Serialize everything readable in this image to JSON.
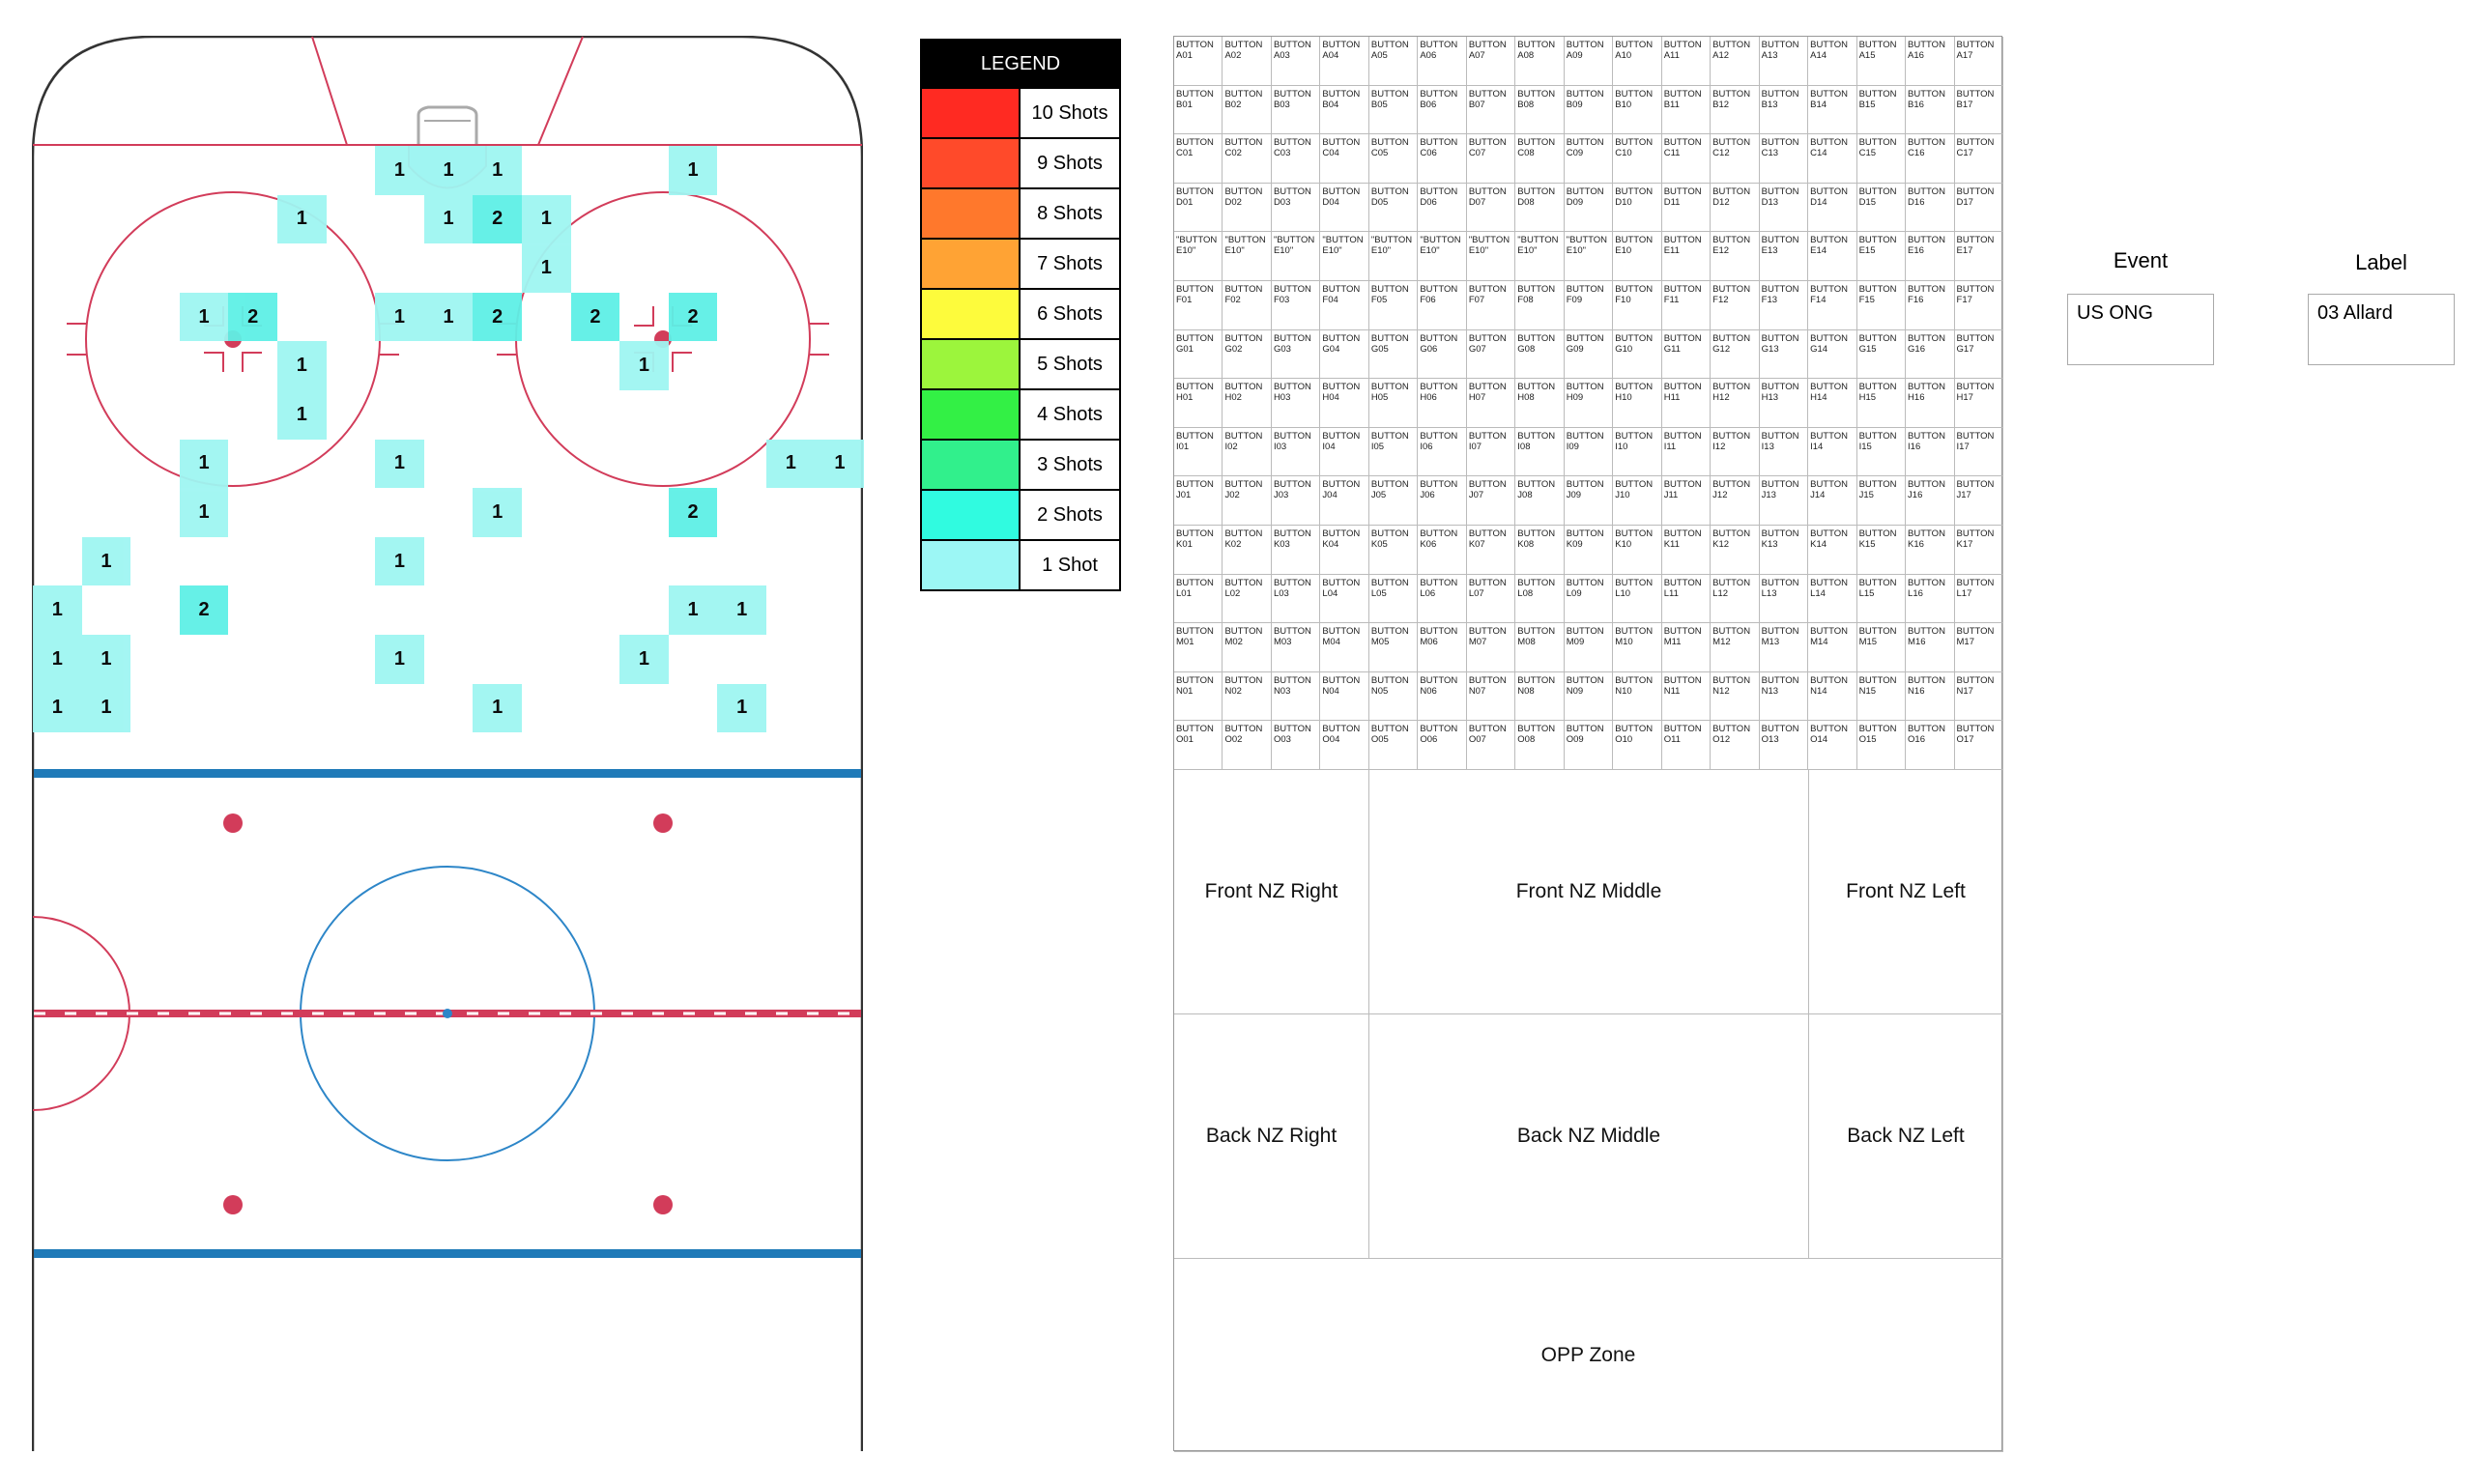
{
  "colors": {
    "rink_red": "#d23c5a",
    "blue_line": "#1f7ab8",
    "center_circle": "#2d86c8",
    "heat_1": "#9ff6f2",
    "heat_2": "#5ef0e6"
  },
  "legend": {
    "title": "LEGEND",
    "items": [
      {
        "label": "10 Shots",
        "color": "#ff2a22"
      },
      {
        "label": "9 Shots",
        "color": "#ff4a2a"
      },
      {
        "label": "8 Shots",
        "color": "#ff782c"
      },
      {
        "label": "7 Shots",
        "color": "#ffa334"
      },
      {
        "label": "6 Shots",
        "color": "#fdfb3c"
      },
      {
        "label": "5 Shots",
        "color": "#9cf53c"
      },
      {
        "label": "4 Shots",
        "color": "#33f045"
      },
      {
        "label": "3 Shots",
        "color": "#31f08c"
      },
      {
        "label": "2 Shots",
        "color": "#30fbe0"
      },
      {
        "label": "1 Shot",
        "color": "#9cf7f5"
      }
    ]
  },
  "heatmap": {
    "cells": [
      {
        "row": 0,
        "col": 7,
        "count": "1"
      },
      {
        "row": 0,
        "col": 8,
        "count": "1"
      },
      {
        "row": 0,
        "col": 9,
        "count": "1"
      },
      {
        "row": 0,
        "col": 13,
        "count": "1"
      },
      {
        "row": 1,
        "col": 5,
        "count": "1"
      },
      {
        "row": 1,
        "col": 8,
        "count": "1"
      },
      {
        "row": 1,
        "col": 9,
        "count": "2"
      },
      {
        "row": 1,
        "col": 10,
        "count": "1"
      },
      {
        "row": 2,
        "col": 10,
        "count": "1"
      },
      {
        "row": 3,
        "col": 3,
        "count": "1"
      },
      {
        "row": 3,
        "col": 4,
        "count": "2"
      },
      {
        "row": 3,
        "col": 7,
        "count": "1"
      },
      {
        "row": 3,
        "col": 8,
        "count": "1"
      },
      {
        "row": 3,
        "col": 9,
        "count": "2"
      },
      {
        "row": 3,
        "col": 11,
        "count": "2"
      },
      {
        "row": 3,
        "col": 13,
        "count": "2"
      },
      {
        "row": 4,
        "col": 5,
        "count": "1"
      },
      {
        "row": 4,
        "col": 12,
        "count": "1"
      },
      {
        "row": 5,
        "col": 5,
        "count": "1"
      },
      {
        "row": 6,
        "col": 3,
        "count": "1"
      },
      {
        "row": 6,
        "col": 7,
        "count": "1"
      },
      {
        "row": 6,
        "col": 15,
        "count": "1"
      },
      {
        "row": 6,
        "col": 16,
        "count": "1"
      },
      {
        "row": 7,
        "col": 3,
        "count": "1"
      },
      {
        "row": 7,
        "col": 9,
        "count": "1"
      },
      {
        "row": 7,
        "col": 13,
        "count": "2"
      },
      {
        "row": 8,
        "col": 1,
        "count": "1"
      },
      {
        "row": 8,
        "col": 7,
        "count": "1"
      },
      {
        "row": 9,
        "col": 0,
        "count": "1"
      },
      {
        "row": 9,
        "col": 3,
        "count": "2"
      },
      {
        "row": 9,
        "col": 13,
        "count": "1"
      },
      {
        "row": 9,
        "col": 14,
        "count": "1"
      },
      {
        "row": 10,
        "col": 0,
        "count": "1"
      },
      {
        "row": 10,
        "col": 1,
        "count": "1"
      },
      {
        "row": 10,
        "col": 7,
        "count": "1"
      },
      {
        "row": 10,
        "col": 12,
        "count": "1"
      },
      {
        "row": 11,
        "col": 0,
        "count": "1"
      },
      {
        "row": 11,
        "col": 1,
        "count": "1"
      },
      {
        "row": 11,
        "col": 9,
        "count": "1"
      },
      {
        "row": 11,
        "col": 14,
        "count": "1"
      }
    ]
  },
  "button_grid": {
    "rows": [
      "A",
      "B",
      "C",
      "D",
      "E",
      "F",
      "G",
      "H",
      "I",
      "J",
      "K",
      "L",
      "M",
      "N",
      "O"
    ],
    "cols": [
      "01",
      "02",
      "03",
      "04",
      "05",
      "06",
      "07",
      "08",
      "09",
      "10",
      "11",
      "12",
      "13",
      "14",
      "15",
      "16",
      "17"
    ],
    "prefix": "BUTTON",
    "e_row_override_label": "\"BUTTON E10\"",
    "e_row_override_count": 9
  },
  "zones": {
    "front_right": "Front NZ Right",
    "front_middle": "Front NZ Middle",
    "front_left": "Front NZ Left",
    "back_right": "Back NZ Right",
    "back_middle": "Back NZ Middle",
    "back_left": "Back NZ Left",
    "opp": "OPP Zone"
  },
  "event": {
    "label": "Event",
    "value": "US ONG"
  },
  "label_field": {
    "label": "Label",
    "value": "03 Allard"
  }
}
